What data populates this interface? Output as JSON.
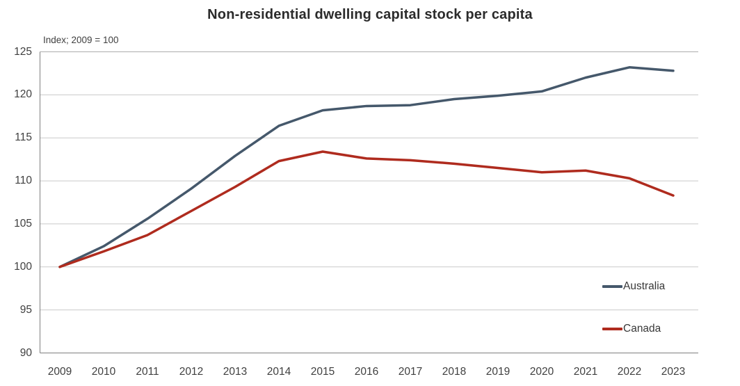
{
  "chart": {
    "title": "Non-residential dwelling capital stock per capita",
    "subtitle": "Index; 2009 = 100"
  },
  "chart_data": {
    "type": "line",
    "x": [
      2009,
      2010,
      2011,
      2012,
      2013,
      2014,
      2015,
      2016,
      2017,
      2018,
      2019,
      2020,
      2021,
      2022,
      2023
    ],
    "series": [
      {
        "name": "Australia",
        "color": "#45586B",
        "values": [
          100,
          102.4,
          105.6,
          109.1,
          112.9,
          116.4,
          118.2,
          118.7,
          118.8,
          119.5,
          119.9,
          120.4,
          122.0,
          123.2,
          122.8
        ]
      },
      {
        "name": "Canada",
        "color": "#AF2B1E",
        "values": [
          100,
          101.8,
          103.7,
          106.5,
          109.3,
          112.3,
          113.4,
          112.6,
          112.4,
          112.0,
          111.5,
          111.0,
          111.2,
          110.3,
          108.3
        ]
      }
    ],
    "ylim": [
      90,
      125
    ],
    "y_ticks": [
      90,
      95,
      100,
      105,
      110,
      115,
      120,
      125
    ],
    "grid": "horizontal",
    "legend_position": "inside-right",
    "colors": {
      "gridline": "#C9C9C9",
      "top_border": "#ACACAC",
      "axis_border": "#7F7F7F",
      "tick_text": "#3F3F3F"
    }
  }
}
